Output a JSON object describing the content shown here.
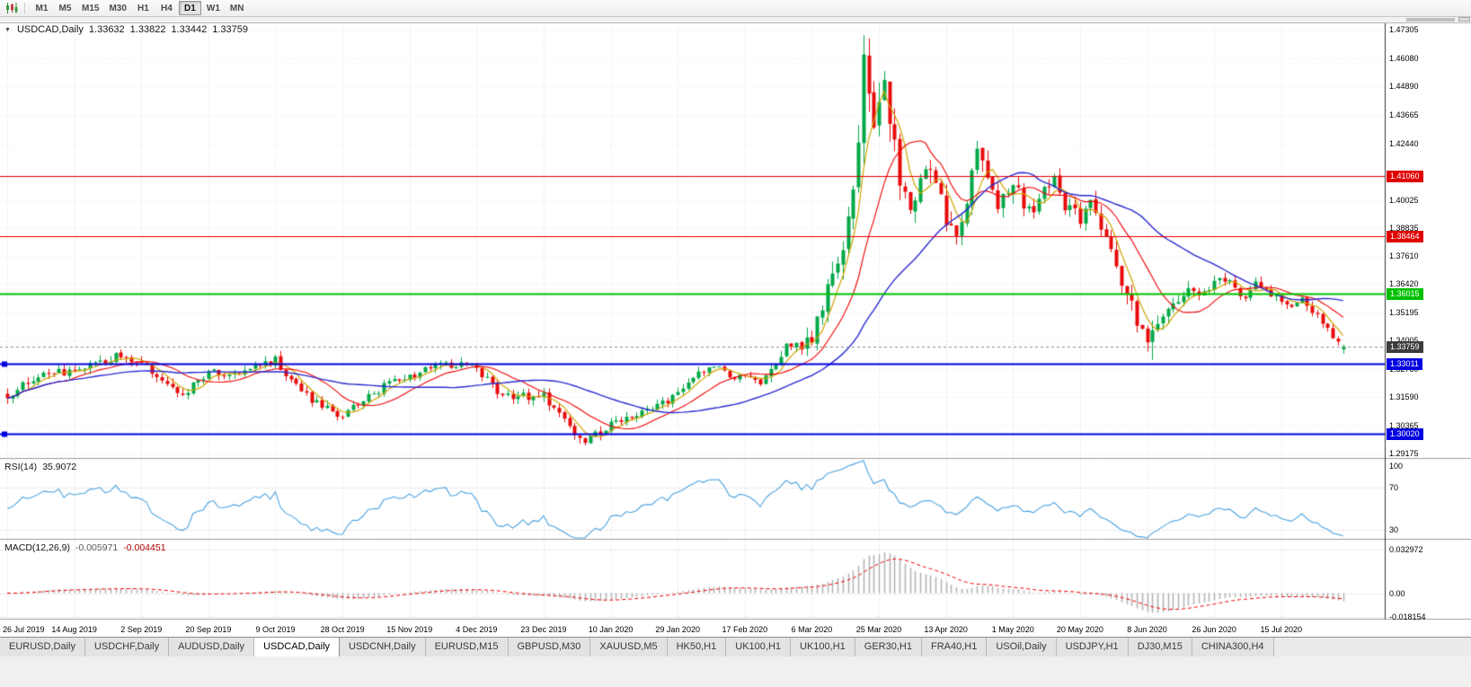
{
  "window": {
    "symbol_title": "USDCAD,Daily",
    "open": "1.33632",
    "high": "1.33822",
    "low": "1.33442",
    "close": "1.33759"
  },
  "toolbar": {
    "timeframes": [
      {
        "label": "M1",
        "active": false
      },
      {
        "label": "M5",
        "active": false
      },
      {
        "label": "M15",
        "active": false
      },
      {
        "label": "M30",
        "active": false
      },
      {
        "label": "H1",
        "active": false
      },
      {
        "label": "H4",
        "active": false
      },
      {
        "label": "D1",
        "active": true
      },
      {
        "label": "W1",
        "active": false
      },
      {
        "label": "MN",
        "active": false
      }
    ]
  },
  "chart_data": {
    "type": "candlestick",
    "symbol": "USDCAD",
    "timeframe": "Daily",
    "current_bar": {
      "open": 1.33632,
      "high": 1.33822,
      "low": 1.33442,
      "close": 1.33759
    },
    "current_price_label": "1.33759",
    "up_color": "#00A846",
    "down_color": "#E80A0A",
    "price_axis_labels": [
      "1.47305",
      "1.46080",
      "1.44890",
      "1.43665",
      "1.42440",
      "1.40025",
      "1.38835",
      "1.37610",
      "1.36420",
      "1.35195",
      "1.34005",
      "1.32780",
      "1.31590",
      "1.30365",
      "1.29175"
    ],
    "line_levels": [
      {
        "price": 1.4106,
        "label": "1.41060",
        "color": "#E00000",
        "thickness": 1,
        "handles": false
      },
      {
        "price": 1.38464,
        "label": "1.38464",
        "color": "#E00000",
        "thickness": 1,
        "handles": false
      },
      {
        "price": 1.36015,
        "label": "1.36015",
        "color": "#00C000",
        "thickness": 2,
        "handles": false
      },
      {
        "price": 1.33011,
        "label": "1.33011",
        "color": "#0000E0",
        "thickness": 2,
        "handles": true
      },
      {
        "price": 1.3002,
        "label": "1.30020",
        "color": "#0000E0",
        "thickness": 2,
        "handles": true
      }
    ],
    "date_labels": [
      "26 Jul 2019",
      "14 Aug 2019",
      "2 Sep 2019",
      "20 Sep 2019",
      "9 Oct 2019",
      "28 Oct 2019",
      "15 Nov 2019",
      "4 Dec 2019",
      "23 Dec 2019",
      "10 Jan 2020",
      "29 Jan 2020",
      "17 Feb 2020",
      "6 Mar 2020",
      "25 Mar 2020",
      "13 Apr 2020",
      "1 May 2020",
      "20 May 2020",
      "8 Jun 2020",
      "26 Jun 2020",
      "15 Jul 2020"
    ],
    "label_every_n_candles": 13,
    "candles_approx": {
      "count": 260,
      "seed": 1234,
      "close_anchors": [
        [
          0,
          1.317
        ],
        [
          4,
          1.3215
        ],
        [
          8,
          1.326
        ],
        [
          13,
          1.327
        ],
        [
          17,
          1.3305
        ],
        [
          21,
          1.333
        ],
        [
          26,
          1.33
        ],
        [
          30,
          1.323
        ],
        [
          34,
          1.3165
        ],
        [
          39,
          1.3265
        ],
        [
          43,
          1.3245
        ],
        [
          47,
          1.3285
        ],
        [
          52,
          1.332
        ],
        [
          56,
          1.3205
        ],
        [
          60,
          1.313
        ],
        [
          65,
          1.3075
        ],
        [
          69,
          1.3145
        ],
        [
          73,
          1.3205
        ],
        [
          78,
          1.3245
        ],
        [
          82,
          1.3285
        ],
        [
          86,
          1.33
        ],
        [
          91,
          1.3285
        ],
        [
          95,
          1.3175
        ],
        [
          99,
          1.3165
        ],
        [
          104,
          1.316
        ],
        [
          107,
          1.309
        ],
        [
          110,
          1.301
        ],
        [
          112,
          1.2975
        ],
        [
          114,
          1.2995
        ],
        [
          117,
          1.3045
        ],
        [
          121,
          1.3085
        ],
        [
          125,
          1.3105
        ],
        [
          130,
          1.3175
        ],
        [
          134,
          1.3255
        ],
        [
          137,
          1.329
        ],
        [
          140,
          1.3255
        ],
        [
          143,
          1.324
        ],
        [
          146,
          1.3225
        ],
        [
          149,
          1.3305
        ],
        [
          152,
          1.3395
        ],
        [
          154,
          1.337
        ],
        [
          156,
          1.3425
        ],
        [
          158,
          1.356
        ],
        [
          160,
          1.37
        ],
        [
          162,
          1.384
        ],
        [
          164,
          1.408
        ],
        [
          165,
          1.428
        ],
        [
          166,
          1.456
        ],
        [
          167,
          1.446
        ],
        [
          168,
          1.436
        ],
        [
          169,
          1.444
        ],
        [
          170,
          1.448
        ],
        [
          171,
          1.435
        ],
        [
          172,
          1.423
        ],
        [
          173,
          1.406
        ],
        [
          175,
          1.399
        ],
        [
          177,
          1.409
        ],
        [
          179,
          1.416
        ],
        [
          182,
          1.392
        ],
        [
          184,
          1.387
        ],
        [
          186,
          1.401
        ],
        [
          188,
          1.423
        ],
        [
          190,
          1.409
        ],
        [
          192,
          1.399
        ],
        [
          195,
          1.407
        ],
        [
          197,
          1.399
        ],
        [
          199,
          1.394
        ],
        [
          201,
          1.406
        ],
        [
          203,
          1.411
        ],
        [
          205,
          1.398
        ],
        [
          208,
          1.3925
        ],
        [
          210,
          1.3985
        ],
        [
          212,
          1.387
        ],
        [
          214,
          1.38
        ],
        [
          216,
          1.366
        ],
        [
          218,
          1.355
        ],
        [
          220,
          1.343
        ],
        [
          221,
          1.3395
        ],
        [
          223,
          1.3455
        ],
        [
          225,
          1.352
        ],
        [
          227,
          1.357
        ],
        [
          229,
          1.361
        ],
        [
          231,
          1.3585
        ],
        [
          234,
          1.365
        ],
        [
          236,
          1.3665
        ],
        [
          238,
          1.3625
        ],
        [
          240,
          1.359
        ],
        [
          242,
          1.364
        ],
        [
          244,
          1.36
        ],
        [
          247,
          1.3575
        ],
        [
          249,
          1.3545
        ],
        [
          251,
          1.358
        ],
        [
          253,
          1.353
        ],
        [
          255,
          1.347
        ],
        [
          257,
          1.342
        ],
        [
          259,
          1.33759
        ]
      ],
      "range_anchors": [
        [
          0,
          0.0046
        ],
        [
          40,
          0.0044
        ],
        [
          80,
          0.004
        ],
        [
          110,
          0.0046
        ],
        [
          130,
          0.0038
        ],
        [
          145,
          0.0042
        ],
        [
          152,
          0.0065
        ],
        [
          157,
          0.0105
        ],
        [
          162,
          0.0145
        ],
        [
          166,
          0.0185
        ],
        [
          170,
          0.0165
        ],
        [
          175,
          0.0125
        ],
        [
          181,
          0.01
        ],
        [
          188,
          0.0095
        ],
        [
          195,
          0.0075
        ],
        [
          203,
          0.0068
        ],
        [
          210,
          0.0065
        ],
        [
          216,
          0.008
        ],
        [
          221,
          0.0085
        ],
        [
          226,
          0.0062
        ],
        [
          232,
          0.005
        ],
        [
          240,
          0.0045
        ],
        [
          250,
          0.0042
        ],
        [
          259,
          0.0038
        ]
      ],
      "forced": {
        "peak_index": 166,
        "peak_high": 1.4668,
        "trough_index": 112,
        "trough_low": 1.2952,
        "june_dip_index": 222,
        "june_dip_low": 1.3318
      }
    },
    "moving_averages": [
      {
        "period": 5,
        "color": "#D0A400",
        "width": 1.2
      },
      {
        "period": 13,
        "color": "#F00000",
        "width": 1.1
      },
      {
        "period": 34,
        "color": "#2A2AD0",
        "width": 1.4
      }
    ],
    "indicators": {
      "rsi": {
        "name": "RSI(14)",
        "period": 14,
        "value": "35.9072",
        "levels": [
          100,
          70,
          30
        ],
        "color": "#49A2E0"
      },
      "macd": {
        "name": "MACD(12,26,9)",
        "fast": 12,
        "slow": 26,
        "signal": 9,
        "value_main": "-0.005971",
        "value_signal": "-0.004451",
        "axis_labels": [
          "0.032972",
          "0.00",
          "-0.018154"
        ],
        "histogram_color": "#B0B0B0",
        "signal_color": "#F00000"
      }
    }
  },
  "tabs": {
    "items": [
      {
        "label": "EURUSD,Daily",
        "active": false
      },
      {
        "label": "USDCHF,Daily",
        "active": false
      },
      {
        "label": "AUDUSD,Daily",
        "active": false
      },
      {
        "label": "USDCAD,Daily",
        "active": true
      },
      {
        "label": "USDCNH,Daily",
        "active": false
      },
      {
        "label": "EURUSD,M15",
        "active": false
      },
      {
        "label": "GBPUSD,M30",
        "active": false
      },
      {
        "label": "XAUUSD,M5",
        "active": false
      },
      {
        "label": "HK50,H1",
        "active": false
      },
      {
        "label": "UK100,H1",
        "active": false
      },
      {
        "label": "UK100,H1",
        "active": false
      },
      {
        "label": "GER30,H1",
        "active": false
      },
      {
        "label": "FRA40,H1",
        "active": false
      },
      {
        "label": "USOil,Daily",
        "active": false
      },
      {
        "label": "USDJPY,H1",
        "active": false
      },
      {
        "label": "DJ30,M15",
        "active": false
      },
      {
        "label": "CHINA300,H4",
        "active": false
      }
    ]
  }
}
